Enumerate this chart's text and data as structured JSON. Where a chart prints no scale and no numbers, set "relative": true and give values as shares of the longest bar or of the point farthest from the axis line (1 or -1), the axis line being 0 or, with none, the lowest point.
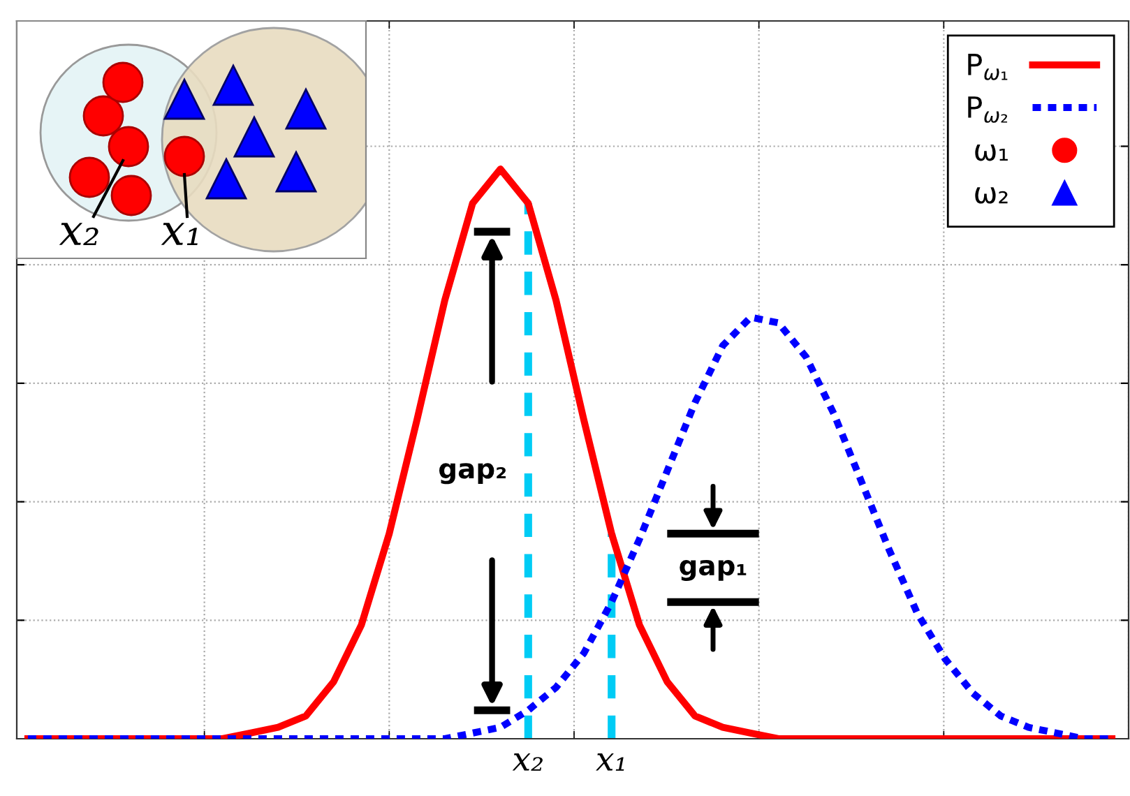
{
  "chart_data": {
    "type": "line",
    "relative": true,
    "grid": true,
    "legend": "top right",
    "categories": [
      null,
      null,
      null,
      null,
      null,
      null,
      null,
      null,
      null,
      null,
      null,
      null,
      null,
      null,
      null,
      null,
      null,
      null,
      "x₂",
      null,
      null,
      "x₁",
      null,
      null,
      null,
      null,
      null,
      null,
      null,
      null,
      null,
      null,
      null,
      null,
      null,
      null,
      null,
      null,
      null,
      null
    ],
    "series": [
      {
        "name": "P$_{ω₁}$",
        "color": "#ff0000",
        "line_style": "solid",
        "values": [
          0,
          0,
          0,
          0,
          0,
          0,
          0,
          0,
          0.01,
          0.02,
          0.04,
          0.1,
          0.2,
          0.36,
          0.56,
          0.77,
          0.94,
          1,
          0.94,
          0.77,
          0.56,
          0.36,
          0.2,
          0.1,
          0.04,
          0.02,
          0.01,
          0,
          0,
          0,
          0,
          0,
          0,
          0,
          0,
          0,
          0,
          0,
          0,
          0
        ]
      },
      {
        "name": "P$_{ω₂}$",
        "color": "#0000ff",
        "line_style": "dotted",
        "values": [
          0,
          0,
          0,
          0,
          0,
          0,
          0,
          0,
          0,
          0,
          0,
          0,
          0,
          0,
          0,
          0,
          0.01,
          0.02,
          0.05,
          0.09,
          0.15,
          0.24,
          0.35,
          0.47,
          0.59,
          0.69,
          0.74,
          0.73,
          0.67,
          0.57,
          0.45,
          0.33,
          0.22,
          0.14,
          0.08,
          0.04,
          0.02,
          0.01,
          0,
          0
        ]
      },
      {
        "name": "ω₁",
        "type": "scatter",
        "color": "#ff0000",
        "marker": "circle",
        "values": [
          null,
          null,
          null,
          null,
          null,
          null,
          null,
          null,
          null,
          null,
          null,
          null,
          null,
          null,
          null,
          null,
          null,
          null,
          null,
          null,
          null,
          null,
          null,
          null,
          null,
          null,
          null,
          null,
          null,
          null,
          null,
          null,
          null,
          null,
          null,
          null,
          null,
          null,
          null,
          null
        ]
      },
      {
        "name": "ω₂",
        "type": "scatter",
        "color": "#0000ff",
        "marker": "triangle",
        "values": [
          null,
          null,
          null,
          null,
          null,
          null,
          null,
          null,
          null,
          null,
          null,
          null,
          null,
          null,
          null,
          null,
          null,
          null,
          null,
          null,
          null,
          null,
          null,
          null,
          null,
          null,
          null,
          null,
          null,
          null,
          null,
          null,
          null,
          null,
          null,
          null,
          null,
          null,
          null,
          null
        ]
      }
    ],
    "ref_lines": [
      {
        "axis": "x",
        "value": "x₂",
        "color": "#00ccf5",
        "line_style": "dashed"
      },
      {
        "axis": "x",
        "value": "x₁",
        "color": "#00ccf5",
        "line_style": "dashed"
      }
    ],
    "annotations": [
      "gap₂",
      "gap₁",
      "x₂",
      "x₁"
    ]
  }
}
